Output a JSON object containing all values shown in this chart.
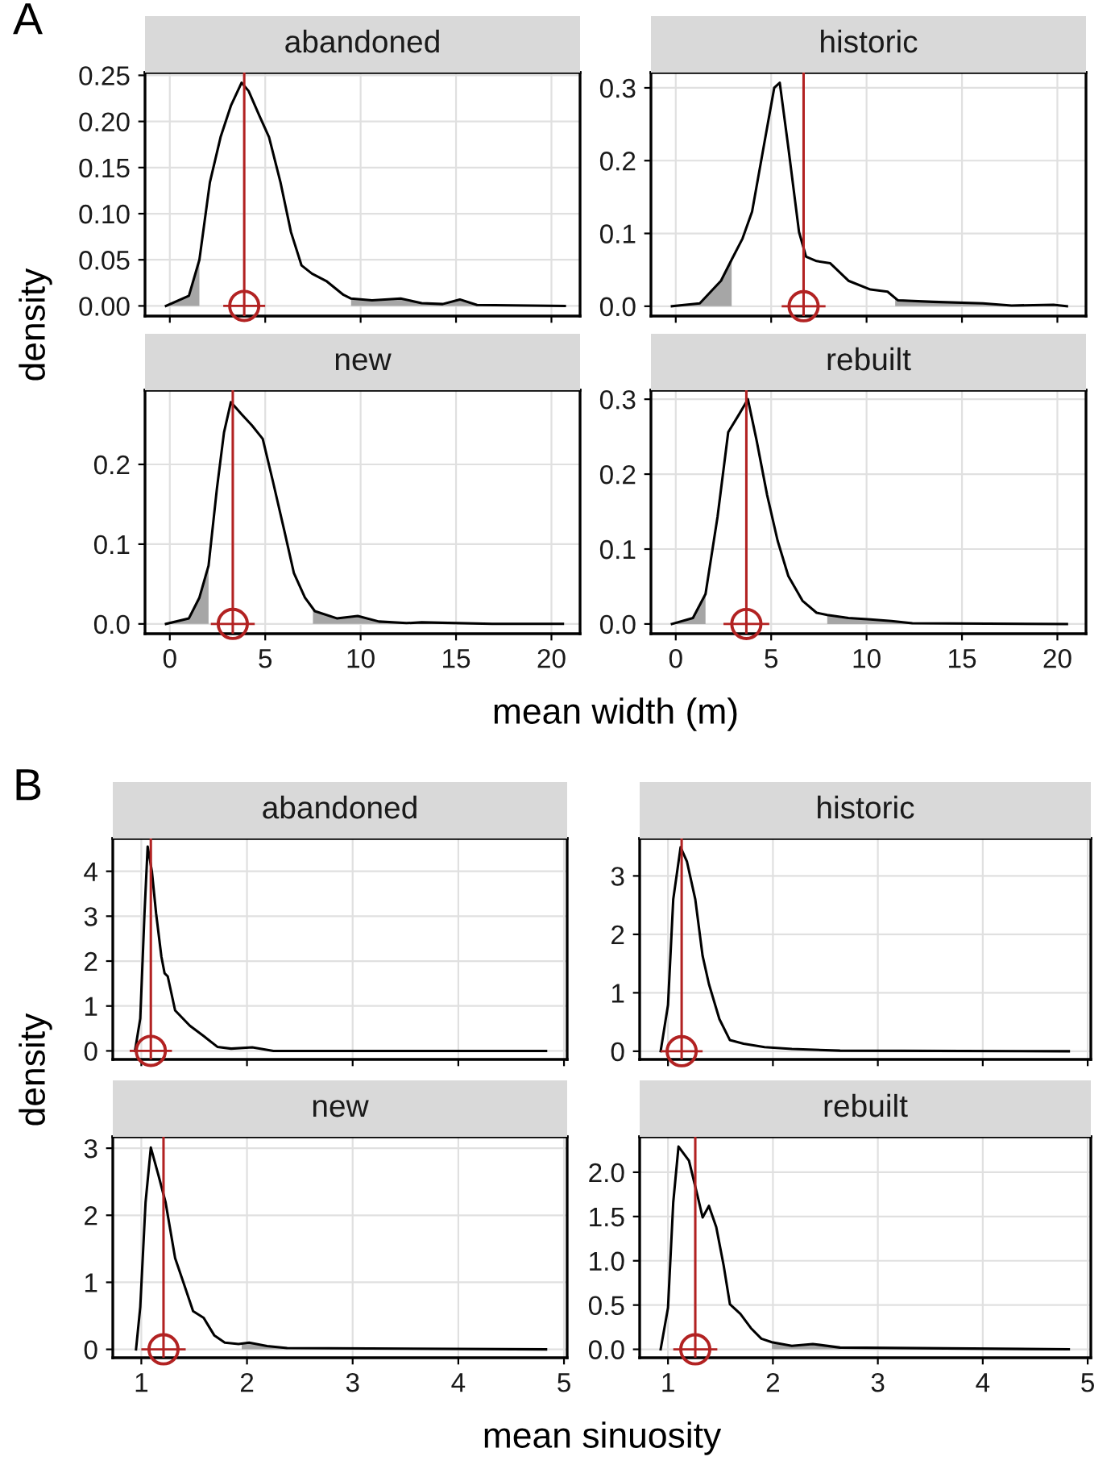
{
  "chart_data": [
    {
      "type": "line",
      "title": "abandoned",
      "ylabel": "density",
      "annotations": [
        "A"
      ],
      "xlim": [
        -1.3,
        21.5
      ],
      "xticks": [
        0,
        5,
        10,
        15,
        20
      ],
      "ylim": [
        -0.011,
        0.253
      ],
      "yticks": [
        {
          "value": 0,
          "label": "0.00"
        },
        {
          "value": 0.05,
          "label": "0.05"
        },
        {
          "value": 0.1,
          "label": "0.10"
        },
        {
          "value": 0.15,
          "label": "0.15"
        },
        {
          "value": 0.2,
          "label": "0.20"
        },
        {
          "value": 0.25,
          "label": "0.25"
        }
      ],
      "tick_labels": "y",
      "grid": true,
      "series": [
        {
          "type": "area",
          "color": "#a6a6a6",
          "x": [
            -0.2,
            1.0,
            1.55
          ],
          "values": [
            0,
            0.011,
            0.05
          ]
        },
        {
          "type": "area",
          "color": "#a6a6a6",
          "x": [
            9.5,
            10.6,
            12.1,
            13.2,
            14.3,
            15.2,
            16.1,
            20.7
          ],
          "values": [
            0.008,
            0.006,
            0.008,
            0.003,
            0.002,
            0.007,
            0.001,
            0
          ]
        },
        {
          "type": "line",
          "color": "#000000",
          "x": [
            -0.2,
            1.0,
            1.55,
            2.1,
            2.66,
            3.2,
            3.76,
            4.13,
            4.7,
            5.2,
            5.8,
            6.35,
            6.9,
            7.45,
            8.2,
            9.1,
            9.5,
            10.6,
            12.1,
            13.2,
            14.3,
            15.2,
            16.1,
            20.7
          ],
          "values": [
            0,
            0.011,
            0.05,
            0.134,
            0.183,
            0.217,
            0.242,
            0.233,
            0.206,
            0.183,
            0.134,
            0.08,
            0.044,
            0.035,
            0.027,
            0.012,
            0.008,
            0.006,
            0.008,
            0.003,
            0.002,
            0.007,
            0.001,
            0
          ]
        },
        {
          "type": "scatter",
          "color": "#b22222",
          "marker": "circle",
          "x": [
            3.9
          ],
          "values": [
            0
          ],
          "xerrors": [
            1.1
          ]
        }
      ],
      "ref_lines": [
        {
          "axis": "x",
          "value": 3.9,
          "color": "#b22222"
        }
      ]
    },
    {
      "type": "line",
      "title": "historic",
      "xlim": [
        -1.3,
        21.5
      ],
      "xticks": [
        0,
        5,
        10,
        15,
        20
      ],
      "ylim": [
        -0.0135,
        0.321
      ],
      "yticks": [
        {
          "value": 0,
          "label": "0.0"
        },
        {
          "value": 0.1,
          "label": "0.1"
        },
        {
          "value": 0.2,
          "label": "0.2"
        },
        {
          "value": 0.3,
          "label": "0.3"
        }
      ],
      "tick_labels": "y",
      "grid": true,
      "series": [
        {
          "type": "area",
          "color": "#a6a6a6",
          "x": [
            -0.2,
            1.26,
            2.37,
            2.93
          ],
          "values": [
            0,
            0.004,
            0.035,
            0.064
          ]
        },
        {
          "type": "area",
          "color": "#a6a6a6",
          "x": [
            11.5,
            13.5,
            16.1,
            17.6,
            19.8,
            20.5
          ],
          "values": [
            0.01,
            0.006,
            0.004,
            0.001,
            0.002,
            0
          ]
        },
        {
          "type": "line",
          "color": "#000000",
          "x": [
            -0.2,
            1.26,
            2.37,
            2.93,
            3.5,
            4.0,
            4.6,
            5.16,
            5.45,
            5.9,
            6.46,
            6.83,
            7.38,
            8.1,
            9.05,
            10.2,
            11.1,
            11.65,
            13.5,
            16.1,
            17.6,
            19.8,
            20.5
          ],
          "values": [
            0,
            0.004,
            0.035,
            0.064,
            0.093,
            0.13,
            0.218,
            0.3,
            0.307,
            0.218,
            0.102,
            0.068,
            0.062,
            0.059,
            0.035,
            0.023,
            0.02,
            0.008,
            0.006,
            0.004,
            0.001,
            0.002,
            0
          ]
        },
        {
          "type": "scatter",
          "color": "#b22222",
          "marker": "circle",
          "x": [
            6.7
          ],
          "values": [
            0
          ],
          "xerrors": [
            1.15
          ]
        }
      ],
      "ref_lines": [
        {
          "axis": "x",
          "value": 6.7,
          "color": "#b22222"
        }
      ]
    },
    {
      "type": "line",
      "title": "new",
      "xlabel": "mean width (m)",
      "xlim": [
        -1.3,
        21.5
      ],
      "xticks": [
        0,
        5,
        10,
        15,
        20
      ],
      "ylim": [
        -0.0123,
        0.293
      ],
      "yticks": [
        {
          "value": 0,
          "label": "0.0"
        },
        {
          "value": 0.1,
          "label": "0.1"
        },
        {
          "value": 0.2,
          "label": "0.2"
        }
      ],
      "grid": true,
      "series": [
        {
          "type": "area",
          "color": "#a6a6a6",
          "x": [
            -0.2,
            1.0,
            1.55,
            2.03
          ],
          "values": [
            0,
            0.007,
            0.033,
            0.073
          ]
        },
        {
          "type": "area",
          "color": "#a6a6a6",
          "x": [
            7.5,
            8.75,
            9.85,
            10.96,
            12.4,
            13.2,
            16.9,
            20.6
          ],
          "values": [
            0.018,
            0.007,
            0.01,
            0.003,
            0.001,
            0.002,
            0,
            0
          ]
        },
        {
          "type": "line",
          "color": "#000000",
          "x": [
            -0.2,
            1.0,
            1.55,
            2.03,
            2.47,
            2.84,
            3.2,
            3.76,
            4.3,
            4.87,
            5.4,
            6.0,
            6.5,
            7.08,
            7.6,
            8.75,
            9.85,
            10.96,
            12.4,
            13.2,
            16.9,
            20.6
          ],
          "values": [
            0,
            0.007,
            0.033,
            0.073,
            0.17,
            0.24,
            0.278,
            0.263,
            0.249,
            0.232,
            0.179,
            0.117,
            0.064,
            0.033,
            0.016,
            0.007,
            0.01,
            0.003,
            0.001,
            0.002,
            0,
            0
          ]
        },
        {
          "type": "scatter",
          "color": "#b22222",
          "marker": "circle",
          "x": [
            3.3
          ],
          "values": [
            0
          ],
          "xerrors": [
            1.15
          ]
        }
      ],
      "ref_lines": [
        {
          "axis": "x",
          "value": 3.3,
          "color": "#b22222"
        }
      ]
    },
    {
      "type": "line",
      "title": "rebuilt",
      "xlim": [
        -1.3,
        21.5
      ],
      "xticks": [
        0,
        5,
        10,
        15,
        20
      ],
      "ylim": [
        -0.013,
        0.312
      ],
      "yticks": [
        {
          "value": 0,
          "label": "0.0"
        },
        {
          "value": 0.1,
          "label": "0.1"
        },
        {
          "value": 0.2,
          "label": "0.2"
        },
        {
          "value": 0.3,
          "label": "0.3"
        }
      ],
      "grid": true,
      "series": [
        {
          "type": "area",
          "color": "#a6a6a6",
          "x": [
            -0.2,
            0.9,
            1.56
          ],
          "values": [
            0,
            0.008,
            0.04
          ]
        },
        {
          "type": "area",
          "color": "#a6a6a6",
          "x": [
            7.94,
            9.05,
            10.2,
            11.3,
            12.4,
            20.5
          ],
          "values": [
            0.012,
            0.008,
            0.006,
            0.004,
            0.001,
            0
          ]
        },
        {
          "type": "line",
          "color": "#000000",
          "x": [
            -0.2,
            0.9,
            1.56,
            2.19,
            2.75,
            3.3,
            3.78,
            4.23,
            4.79,
            5.34,
            5.9,
            6.64,
            7.38,
            7.94,
            9.05,
            10.2,
            11.3,
            12.4,
            20.5
          ],
          "values": [
            0,
            0.008,
            0.04,
            0.143,
            0.256,
            0.279,
            0.3,
            0.246,
            0.172,
            0.111,
            0.064,
            0.031,
            0.015,
            0.012,
            0.008,
            0.006,
            0.004,
            0.001,
            0
          ]
        },
        {
          "type": "scatter",
          "color": "#b22222",
          "marker": "circle",
          "x": [
            3.7
          ],
          "values": [
            0
          ],
          "xerrors": [
            1.2
          ]
        }
      ],
      "ref_lines": [
        {
          "axis": "x",
          "value": 3.7,
          "color": "#b22222"
        }
      ]
    },
    {
      "type": "line",
      "title": "abandoned",
      "ylabel": "density",
      "annotations": [
        "B"
      ],
      "xlim": [
        0.73,
        5.03
      ],
      "xticks": [
        1,
        2,
        3,
        4,
        5
      ],
      "ylim": [
        -0.19,
        4.73
      ],
      "yticks": [
        0,
        1,
        2,
        3,
        4
      ],
      "tick_labels": "y",
      "grid": true,
      "series": [
        {
          "type": "line",
          "color": "#000000",
          "x": [
            0.94,
            0.99,
            1.03,
            1.06,
            1.1,
            1.14,
            1.19,
            1.22,
            1.25,
            1.32,
            1.46,
            1.59,
            1.72,
            1.85,
            2.05,
            2.25,
            4.83
          ],
          "values": [
            0,
            0.72,
            3.06,
            4.55,
            4.0,
            3.06,
            2.1,
            1.73,
            1.66,
            0.9,
            0.56,
            0.33,
            0.09,
            0.05,
            0.08,
            0,
            0
          ]
        },
        {
          "type": "scatter",
          "color": "#b22222",
          "marker": "circle",
          "x": [
            1.09
          ],
          "values": [
            0
          ],
          "xerrors": [
            0.2
          ]
        }
      ],
      "ref_lines": [
        {
          "axis": "x",
          "value": 1.09,
          "color": "#b22222"
        }
      ]
    },
    {
      "type": "line",
      "title": "historic",
      "xlim": [
        0.73,
        5.03
      ],
      "xticks": [
        1,
        2,
        3,
        4,
        5
      ],
      "ylim": [
        -0.14,
        3.64
      ],
      "yticks": [
        0,
        1,
        2,
        3
      ],
      "tick_labels": "y",
      "grid": true,
      "series": [
        {
          "type": "line",
          "color": "#000000",
          "x": [
            0.93,
            1.0,
            1.05,
            1.12,
            1.18,
            1.26,
            1.33,
            1.39,
            1.49,
            1.59,
            1.72,
            1.92,
            2.18,
            2.64,
            4.82
          ],
          "values": [
            0,
            0.79,
            2.6,
            3.49,
            3.25,
            2.6,
            1.63,
            1.15,
            0.55,
            0.19,
            0.13,
            0.07,
            0.04,
            0.01,
            0
          ]
        },
        {
          "type": "scatter",
          "color": "#b22222",
          "marker": "circle",
          "x": [
            1.13
          ],
          "values": [
            0
          ],
          "xerrors": [
            0.2
          ]
        }
      ],
      "ref_lines": [
        {
          "axis": "x",
          "value": 1.13,
          "color": "#b22222"
        }
      ]
    },
    {
      "type": "line",
      "title": "new",
      "xlabel": "mean sinuosity",
      "xlim": [
        0.73,
        5.03
      ],
      "xticks": [
        1,
        2,
        3,
        4,
        5
      ],
      "ylim": [
        -0.125,
        3.17
      ],
      "yticks": [
        0,
        1,
        2,
        3
      ],
      "grid": true,
      "series": [
        {
          "type": "area",
          "color": "#a6a6a6",
          "x": [
            1.95,
            2.02,
            2.19,
            2.38
          ],
          "values": [
            0.09,
            0.1,
            0.05,
            0.02
          ]
        },
        {
          "type": "line",
          "color": "#000000",
          "x": [
            0.95,
            0.99,
            1.04,
            1.09,
            1.16,
            1.23,
            1.32,
            1.4,
            1.49,
            1.59,
            1.69,
            1.79,
            1.92,
            2.02,
            2.19,
            2.38,
            4.83
          ],
          "values": [
            0,
            0.63,
            2.19,
            3.01,
            2.61,
            2.19,
            1.36,
            0.99,
            0.57,
            0.47,
            0.21,
            0.1,
            0.08,
            0.1,
            0.05,
            0.02,
            0
          ]
        },
        {
          "type": "scatter",
          "color": "#b22222",
          "marker": "circle",
          "x": [
            1.21
          ],
          "values": [
            0
          ],
          "xerrors": [
            0.21
          ]
        }
      ],
      "ref_lines": [
        {
          "axis": "x",
          "value": 1.21,
          "color": "#b22222"
        }
      ]
    },
    {
      "type": "line",
      "title": "rebuilt",
      "xlim": [
        0.73,
        5.03
      ],
      "xticks": [
        1,
        2,
        3,
        4,
        5
      ],
      "ylim": [
        -0.095,
        2.4
      ],
      "yticks": [
        {
          "value": 0,
          "label": "0.0"
        },
        {
          "value": 0.5,
          "label": "0.5"
        },
        {
          "value": 1,
          "label": "1.0"
        },
        {
          "value": 1.5,
          "label": "1.5"
        },
        {
          "value": 2,
          "label": "2.0"
        }
      ],
      "grid": true,
      "series": [
        {
          "type": "area",
          "color": "#a6a6a6",
          "x": [
            1.99,
            2.18,
            2.38,
            2.64
          ],
          "values": [
            0.08,
            0.04,
            0.06,
            0.02
          ]
        },
        {
          "type": "line",
          "color": "#000000",
          "x": [
            0.93,
            1.0,
            1.05,
            1.1,
            1.2,
            1.28,
            1.33,
            1.39,
            1.46,
            1.53,
            1.59,
            1.69,
            1.79,
            1.89,
            1.99,
            2.18,
            2.38,
            2.64,
            4.82
          ],
          "values": [
            0,
            0.47,
            1.66,
            2.29,
            2.13,
            1.74,
            1.49,
            1.62,
            1.38,
            0.95,
            0.51,
            0.4,
            0.24,
            0.12,
            0.08,
            0.04,
            0.06,
            0.02,
            0
          ]
        },
        {
          "type": "scatter",
          "color": "#b22222",
          "marker": "circle",
          "x": [
            1.26
          ],
          "values": [
            0
          ],
          "xerrors": [
            0.21
          ]
        }
      ],
      "ref_lines": [
        {
          "axis": "x",
          "value": 1.26,
          "color": "#b22222"
        }
      ]
    }
  ]
}
